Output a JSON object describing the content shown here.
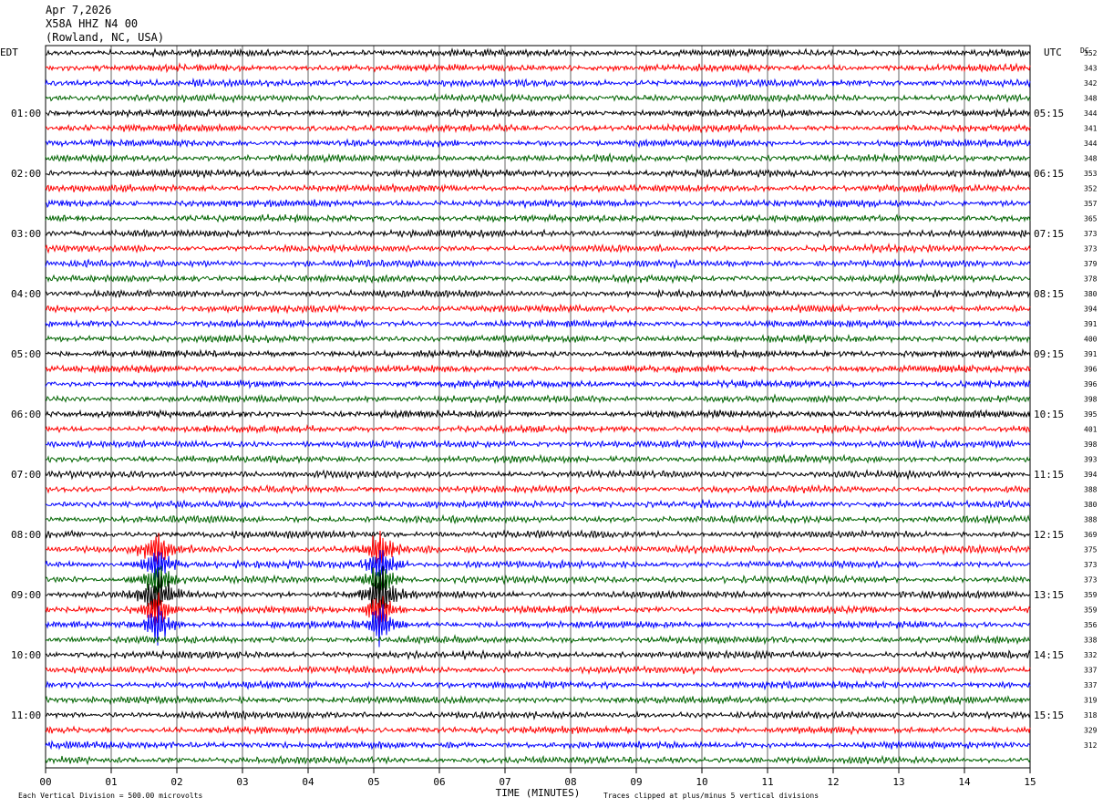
{
  "header": {
    "date": "Apr 7,2026",
    "station": "X58A HHZ N4 00",
    "location": "(Rowland, NC, USA)"
  },
  "axes": {
    "left_zone": "EDT",
    "right_zone": "UTC",
    "dc_label": "DC",
    "xlabel": "TIME (MINUTES)",
    "footer_left": "Each Vertical Division =  500.00 microvolts",
    "footer_right": "Traces clipped at plus/minus 5 vertical divisions"
  },
  "chart_data": {
    "type": "line",
    "x_ticks": [
      "00",
      "01",
      "02",
      "03",
      "04",
      "05",
      "06",
      "07",
      "08",
      "09",
      "10",
      "11",
      "12",
      "13",
      "14",
      "15"
    ],
    "xlim": [
      0,
      15
    ],
    "grid": true,
    "trace_colors": [
      "#000000",
      "#ff0000",
      "#0000ff",
      "#006400"
    ],
    "left_labels": [
      "01:00",
      "02:00",
      "03:00",
      "04:00",
      "05:00",
      "06:00",
      "07:00",
      "08:00",
      "09:00",
      "10:00",
      "11:00"
    ],
    "right_labels": [
      "05:15",
      "06:15",
      "07:15",
      "08:15",
      "09:15",
      "10:15",
      "11:15",
      "12:15",
      "13:15",
      "14:15",
      "15:15"
    ],
    "dc_values": [
      352,
      343,
      342,
      348,
      344,
      341,
      344,
      348,
      353,
      352,
      357,
      365,
      373,
      373,
      379,
      378,
      380,
      394,
      391,
      400,
      391,
      396,
      396,
      398,
      395,
      401,
      398,
      393,
      394,
      388,
      380,
      388,
      369,
      375,
      373,
      373,
      359,
      359,
      356,
      338,
      332,
      337,
      337,
      319,
      318,
      329,
      312
    ],
    "trace_count": 48,
    "events": [
      {
        "start_minute": 1.7,
        "trace_rows": [
          33,
          34,
          35,
          36,
          37,
          38
        ],
        "label": ""
      },
      {
        "start_minute": 5.1,
        "trace_rows": [
          33,
          34,
          35,
          36,
          37,
          38
        ],
        "label": ""
      }
    ]
  }
}
